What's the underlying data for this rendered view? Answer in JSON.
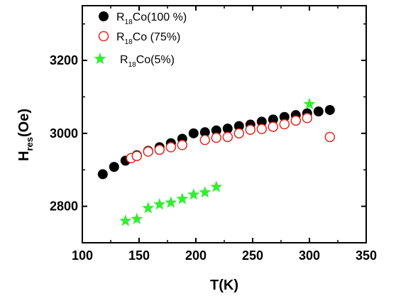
{
  "chart_data": {
    "type": "scatter",
    "xlabel": "T(K)",
    "ylabel_main": "H",
    "ylabel_sub": "res",
    "ylabel_tail": "(Oe)",
    "xlim": [
      100,
      350
    ],
    "ylim": [
      2700,
      3350
    ],
    "x_ticks": [
      100,
      150,
      200,
      250,
      300,
      350
    ],
    "y_ticks": [
      2800,
      3000,
      3200
    ],
    "x_tick_labels": [
      "100",
      "150",
      "200",
      "250",
      "300",
      "350"
    ],
    "y_tick_labels": [
      "2800",
      "3000",
      "3200"
    ],
    "grid": false,
    "legend_position": "top-left",
    "series": [
      {
        "name_main": "R",
        "name_sub": "18",
        "name_tail": "Co(100 %)",
        "marker": "filled-circle",
        "color": "#000000",
        "x": [
          118,
          128,
          138,
          148,
          158,
          168,
          178,
          188,
          198,
          208,
          218,
          228,
          238,
          248,
          258,
          268,
          278,
          288,
          298,
          308,
          318
        ],
        "y": [
          2888,
          2908,
          2925,
          2940,
          2952,
          2962,
          2973,
          2985,
          3000,
          3003,
          3008,
          3013,
          3020,
          3024,
          3032,
          3038,
          3045,
          3050,
          3055,
          3060,
          3064
        ]
      },
      {
        "name_main": "R",
        "name_sub": "18",
        "name_tail": "Co (75%)",
        "marker": "open-circle",
        "color": "#e8241c",
        "x": [
          143,
          148,
          158,
          168,
          178,
          188,
          208,
          218,
          228,
          238,
          248,
          258,
          268,
          278,
          288,
          298,
          318
        ],
        "y": [
          2932,
          2938,
          2950,
          2955,
          2962,
          2968,
          2982,
          2988,
          2990,
          3000,
          3010,
          3012,
          3018,
          3025,
          3035,
          3042,
          2990
        ]
      },
      {
        "name_main": "R",
        "name_sub": "18",
        "name_tail": "Co(5%)",
        "marker": "star",
        "color": "#33ee33",
        "x": [
          138,
          148,
          158,
          168,
          178,
          188,
          198,
          208,
          218,
          300
        ],
        "y": [
          2760,
          2765,
          2795,
          2805,
          2810,
          2820,
          2832,
          2838,
          2853,
          3080
        ]
      }
    ]
  }
}
